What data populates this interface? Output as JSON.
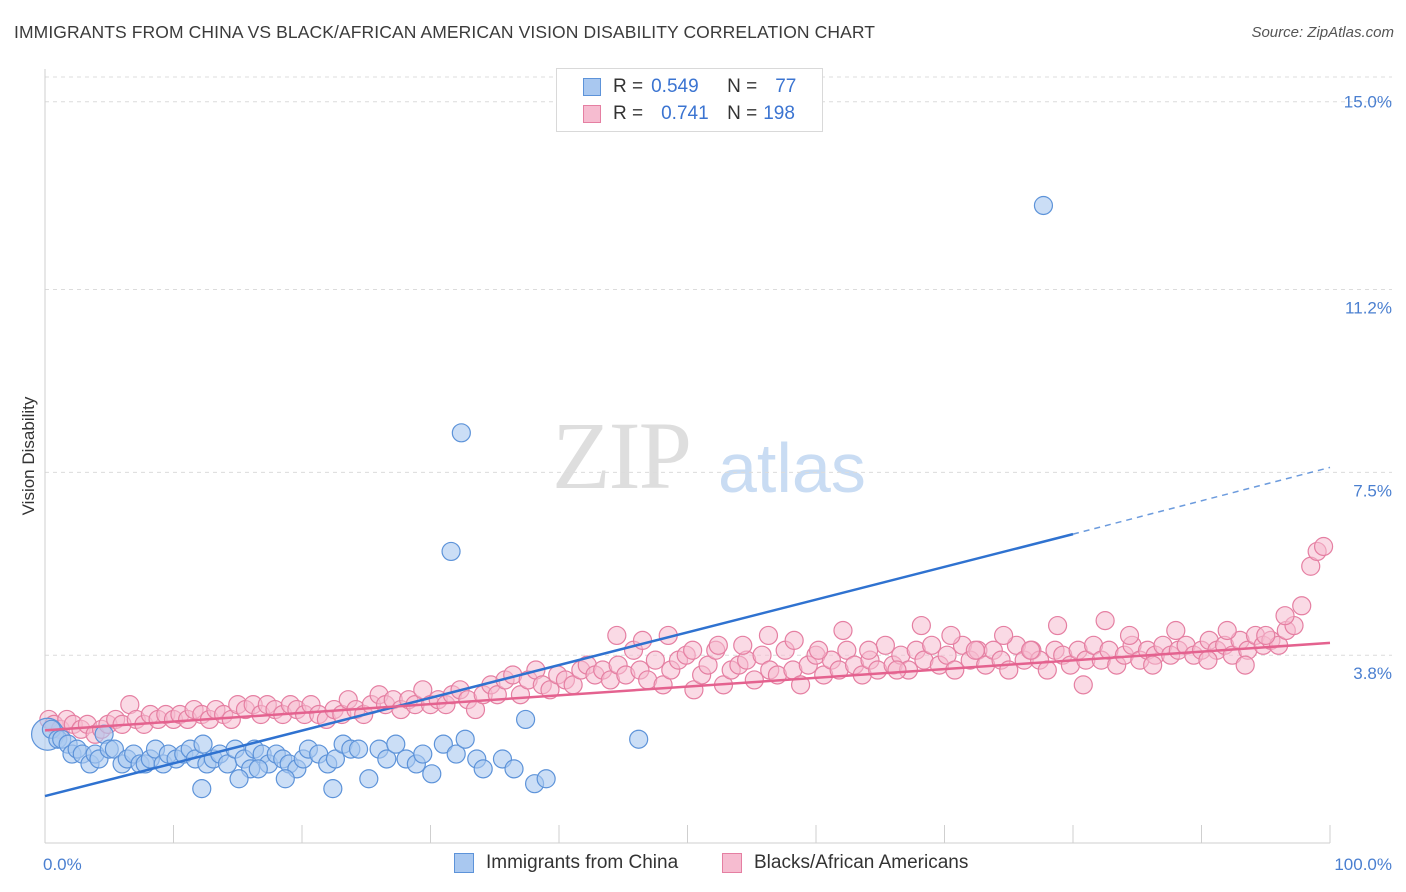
{
  "title": "IMMIGRANTS FROM CHINA VS BLACK/AFRICAN AMERICAN VISION DISABILITY CORRELATION CHART",
  "source": "Source: ZipAtlas.com",
  "watermark": {
    "zip": "ZIP",
    "atlas": "atlas"
  },
  "legend": {
    "china": {
      "r_label": "R =",
      "r_value": "0.549",
      "n_label": "N =",
      "n_value": "77"
    },
    "black": {
      "r_label": "R =",
      "r_value": "0.741",
      "n_label": "N =",
      "n_value": "198"
    }
  },
  "colors": {
    "china_fill": "#a9c8f0",
    "china_stroke": "#5d93d9",
    "china_line": "#2f72d0",
    "black_fill": "#f6bcd0",
    "black_stroke": "#e57fa2",
    "black_line": "#e4628f",
    "grid": "#dcdcdc",
    "tick_text": "#4a7fd0"
  },
  "chart_data": {
    "type": "scatter",
    "title": "IMMIGRANTS FROM CHINA VS BLACK/AFRICAN AMERICAN VISION DISABILITY CORRELATION CHART",
    "xlabel": "",
    "ylabel": "Vision Disability",
    "xlim": [
      0,
      100
    ],
    "ylim": [
      0,
      15.5
    ],
    "x_tick_labels": [
      "0.0%",
      "100.0%"
    ],
    "y_ticks": [
      3.8,
      7.5,
      11.2,
      15.0
    ],
    "y_tick_labels": [
      "3.8%",
      "7.5%",
      "11.2%",
      "15.0%"
    ],
    "grid": true,
    "legend_position": "top-center",
    "series": [
      {
        "name": "Immigrants from China",
        "r": 0.549,
        "n": 77,
        "trend": {
          "x0": 0,
          "y0": 0.95,
          "x1": 80,
          "y1": 6.25,
          "dashed_to_x": 100,
          "dashed_to_y": 7.6
        },
        "points": [
          [
            0.2,
            2.2
          ],
          [
            0.5,
            2.3
          ],
          [
            1,
            2.1
          ],
          [
            1.3,
            2.1
          ],
          [
            1.8,
            2.0
          ],
          [
            2.1,
            1.8
          ],
          [
            2.5,
            1.9
          ],
          [
            2.9,
            1.8
          ],
          [
            3.5,
            1.6
          ],
          [
            3.9,
            1.8
          ],
          [
            4.2,
            1.7
          ],
          [
            4.6,
            2.2
          ],
          [
            5.0,
            1.9
          ],
          [
            5.4,
            1.9
          ],
          [
            6.0,
            1.6
          ],
          [
            6.4,
            1.7
          ],
          [
            6.9,
            1.8
          ],
          [
            7.4,
            1.6
          ],
          [
            7.8,
            1.6
          ],
          [
            8.2,
            1.7
          ],
          [
            8.6,
            1.9
          ],
          [
            9.2,
            1.6
          ],
          [
            9.6,
            1.8
          ],
          [
            10.2,
            1.7
          ],
          [
            10.8,
            1.8
          ],
          [
            11.3,
            1.9
          ],
          [
            11.7,
            1.7
          ],
          [
            12.3,
            2.0
          ],
          [
            12.6,
            1.6
          ],
          [
            13.1,
            1.7
          ],
          [
            13.6,
            1.8
          ],
          [
            14.2,
            1.6
          ],
          [
            14.8,
            1.9
          ],
          [
            15.5,
            1.7
          ],
          [
            16.0,
            1.5
          ],
          [
            16.3,
            1.9
          ],
          [
            16.9,
            1.8
          ],
          [
            17.4,
            1.6
          ],
          [
            18.0,
            1.8
          ],
          [
            18.5,
            1.7
          ],
          [
            19.0,
            1.6
          ],
          [
            19.6,
            1.5
          ],
          [
            20.1,
            1.7
          ],
          [
            20.5,
            1.9
          ],
          [
            21.3,
            1.8
          ],
          [
            22.0,
            1.6
          ],
          [
            22.6,
            1.7
          ],
          [
            23.2,
            2.0
          ],
          [
            23.8,
            1.9
          ],
          [
            24.4,
            1.9
          ],
          [
            25.2,
            1.3
          ],
          [
            26.0,
            1.9
          ],
          [
            26.6,
            1.7
          ],
          [
            27.3,
            2.0
          ],
          [
            28.1,
            1.7
          ],
          [
            28.9,
            1.6
          ],
          [
            29.4,
            1.8
          ],
          [
            30.1,
            1.4
          ],
          [
            31.0,
            2.0
          ],
          [
            32.0,
            1.8
          ],
          [
            32.7,
            2.1
          ],
          [
            33.6,
            1.7
          ],
          [
            35.6,
            1.7
          ],
          [
            36.5,
            1.5
          ],
          [
            37.4,
            2.5
          ],
          [
            38.1,
            1.2
          ],
          [
            39.0,
            1.3
          ],
          [
            12.2,
            1.1
          ],
          [
            15.1,
            1.3
          ],
          [
            18.7,
            1.3
          ],
          [
            22.4,
            1.1
          ],
          [
            16.6,
            1.5
          ],
          [
            31.6,
            5.9
          ],
          [
            32.4,
            8.3
          ],
          [
            77.7,
            12.9
          ],
          [
            46.2,
            2.1
          ],
          [
            34.1,
            1.5
          ]
        ]
      },
      {
        "name": "Blacks/African Americans",
        "r": 0.741,
        "n": 198,
        "trend": {
          "x0": 0,
          "y0": 2.28,
          "x1": 100,
          "y1": 4.05
        },
        "points": [
          [
            0.3,
            2.5
          ],
          [
            0.7,
            2.4
          ],
          [
            1.2,
            2.3
          ],
          [
            1.7,
            2.5
          ],
          [
            2.2,
            2.4
          ],
          [
            2.8,
            2.3
          ],
          [
            3.3,
            2.4
          ],
          [
            3.9,
            2.2
          ],
          [
            4.4,
            2.3
          ],
          [
            4.9,
            2.4
          ],
          [
            5.5,
            2.5
          ],
          [
            6.0,
            2.4
          ],
          [
            6.6,
            2.8
          ],
          [
            7.1,
            2.5
          ],
          [
            7.7,
            2.4
          ],
          [
            8.2,
            2.6
          ],
          [
            8.8,
            2.5
          ],
          [
            9.4,
            2.6
          ],
          [
            10.0,
            2.5
          ],
          [
            10.5,
            2.6
          ],
          [
            11.1,
            2.5
          ],
          [
            11.6,
            2.7
          ],
          [
            12.2,
            2.6
          ],
          [
            12.8,
            2.5
          ],
          [
            13.3,
            2.7
          ],
          [
            13.9,
            2.6
          ],
          [
            14.5,
            2.5
          ],
          [
            15.0,
            2.8
          ],
          [
            15.6,
            2.7
          ],
          [
            16.2,
            2.8
          ],
          [
            16.8,
            2.6
          ],
          [
            17.3,
            2.8
          ],
          [
            17.9,
            2.7
          ],
          [
            18.5,
            2.6
          ],
          [
            19.1,
            2.8
          ],
          [
            19.6,
            2.7
          ],
          [
            20.2,
            2.6
          ],
          [
            20.7,
            2.8
          ],
          [
            21.3,
            2.6
          ],
          [
            21.9,
            2.5
          ],
          [
            22.5,
            2.7
          ],
          [
            23.1,
            2.6
          ],
          [
            23.6,
            2.9
          ],
          [
            24.2,
            2.7
          ],
          [
            24.8,
            2.6
          ],
          [
            25.4,
            2.8
          ],
          [
            26.0,
            3.0
          ],
          [
            26.5,
            2.8
          ],
          [
            27.1,
            2.9
          ],
          [
            27.7,
            2.7
          ],
          [
            28.3,
            2.9
          ],
          [
            28.8,
            2.8
          ],
          [
            29.4,
            3.1
          ],
          [
            30.0,
            2.8
          ],
          [
            30.6,
            2.9
          ],
          [
            31.2,
            2.8
          ],
          [
            31.7,
            3.0
          ],
          [
            32.3,
            3.1
          ],
          [
            32.9,
            2.9
          ],
          [
            33.5,
            2.7
          ],
          [
            34.1,
            3.0
          ],
          [
            34.7,
            3.2
          ],
          [
            35.2,
            3.0
          ],
          [
            35.8,
            3.3
          ],
          [
            36.4,
            3.4
          ],
          [
            37.0,
            3.0
          ],
          [
            37.6,
            3.3
          ],
          [
            38.2,
            3.5
          ],
          [
            38.7,
            3.2
          ],
          [
            39.3,
            3.1
          ],
          [
            39.9,
            3.4
          ],
          [
            40.5,
            3.3
          ],
          [
            41.1,
            3.2
          ],
          [
            41.7,
            3.5
          ],
          [
            42.2,
            3.6
          ],
          [
            42.8,
            3.4
          ],
          [
            43.4,
            3.5
          ],
          [
            44.0,
            3.3
          ],
          [
            44.6,
            3.6
          ],
          [
            45.2,
            3.4
          ],
          [
            45.8,
            3.9
          ],
          [
            46.3,
            3.5
          ],
          [
            46.9,
            3.3
          ],
          [
            47.5,
            3.7
          ],
          [
            48.1,
            3.2
          ],
          [
            48.7,
            3.5
          ],
          [
            49.3,
            3.7
          ],
          [
            49.9,
            3.8
          ],
          [
            50.5,
            3.1
          ],
          [
            51.1,
            3.4
          ],
          [
            51.6,
            3.6
          ],
          [
            52.2,
            3.9
          ],
          [
            52.8,
            3.2
          ],
          [
            53.4,
            3.5
          ],
          [
            54.0,
            3.6
          ],
          [
            54.6,
            3.7
          ],
          [
            55.2,
            3.3
          ],
          [
            55.8,
            3.8
          ],
          [
            56.4,
            3.5
          ],
          [
            57.0,
            3.4
          ],
          [
            57.6,
            3.9
          ],
          [
            58.2,
            3.5
          ],
          [
            58.8,
            3.2
          ],
          [
            59.4,
            3.6
          ],
          [
            60.0,
            3.8
          ],
          [
            60.6,
            3.4
          ],
          [
            61.2,
            3.7
          ],
          [
            61.8,
            3.5
          ],
          [
            62.4,
            3.9
          ],
          [
            63.0,
            3.6
          ],
          [
            63.6,
            3.4
          ],
          [
            64.2,
            3.7
          ],
          [
            64.8,
            3.5
          ],
          [
            65.4,
            4.0
          ],
          [
            66.0,
            3.6
          ],
          [
            66.6,
            3.8
          ],
          [
            67.2,
            3.5
          ],
          [
            67.8,
            3.9
          ],
          [
            68.4,
            3.7
          ],
          [
            69.0,
            4.0
          ],
          [
            69.6,
            3.6
          ],
          [
            70.2,
            3.8
          ],
          [
            70.8,
            3.5
          ],
          [
            71.4,
            4.0
          ],
          [
            72.0,
            3.7
          ],
          [
            72.6,
            3.9
          ],
          [
            73.2,
            3.6
          ],
          [
            73.8,
            3.9
          ],
          [
            74.4,
            3.7
          ],
          [
            75.0,
            3.5
          ],
          [
            75.6,
            4.0
          ],
          [
            76.2,
            3.7
          ],
          [
            76.8,
            3.9
          ],
          [
            77.4,
            3.7
          ],
          [
            78.0,
            3.5
          ],
          [
            78.6,
            3.9
          ],
          [
            79.2,
            3.8
          ],
          [
            79.8,
            3.6
          ],
          [
            80.4,
            3.9
          ],
          [
            81.0,
            3.7
          ],
          [
            81.6,
            4.0
          ],
          [
            82.2,
            3.7
          ],
          [
            82.8,
            3.9
          ],
          [
            83.4,
            3.6
          ],
          [
            84.0,
            3.8
          ],
          [
            84.6,
            4.0
          ],
          [
            85.2,
            3.7
          ],
          [
            85.8,
            3.9
          ],
          [
            86.4,
            3.8
          ],
          [
            87.0,
            4.0
          ],
          [
            87.6,
            3.8
          ],
          [
            88.2,
            3.9
          ],
          [
            88.8,
            4.0
          ],
          [
            89.4,
            3.8
          ],
          [
            90.0,
            3.9
          ],
          [
            90.6,
            4.1
          ],
          [
            91.2,
            3.9
          ],
          [
            91.8,
            4.0
          ],
          [
            92.4,
            3.8
          ],
          [
            93.0,
            4.1
          ],
          [
            93.6,
            3.9
          ],
          [
            94.2,
            4.2
          ],
          [
            94.8,
            4.0
          ],
          [
            95.4,
            4.1
          ],
          [
            96.0,
            4.0
          ],
          [
            96.6,
            4.3
          ],
          [
            97.2,
            4.4
          ],
          [
            97.8,
            4.8
          ],
          [
            98.5,
            5.6
          ],
          [
            99.0,
            5.9
          ],
          [
            99.5,
            6.0
          ],
          [
            96.5,
            4.6
          ],
          [
            95.0,
            4.2
          ],
          [
            93.4,
            3.6
          ],
          [
            92.0,
            4.3
          ],
          [
            90.5,
            3.7
          ],
          [
            88.0,
            4.3
          ],
          [
            86.2,
            3.6
          ],
          [
            84.4,
            4.2
          ],
          [
            82.5,
            4.5
          ],
          [
            80.8,
            3.2
          ],
          [
            78.8,
            4.4
          ],
          [
            76.7,
            3.9
          ],
          [
            74.6,
            4.2
          ],
          [
            72.4,
            3.9
          ],
          [
            70.5,
            4.2
          ],
          [
            68.2,
            4.4
          ],
          [
            66.3,
            3.5
          ],
          [
            64.1,
            3.9
          ],
          [
            62.1,
            4.3
          ],
          [
            60.2,
            3.9
          ],
          [
            58.3,
            4.1
          ],
          [
            56.3,
            4.2
          ],
          [
            54.3,
            4.0
          ],
          [
            52.4,
            4.0
          ],
          [
            50.4,
            3.9
          ],
          [
            48.5,
            4.2
          ],
          [
            46.5,
            4.1
          ],
          [
            44.5,
            4.2
          ]
        ]
      }
    ]
  },
  "bottom_legend": [
    {
      "label": "Immigrants from China"
    },
    {
      "label": "Blacks/African Americans"
    }
  ]
}
